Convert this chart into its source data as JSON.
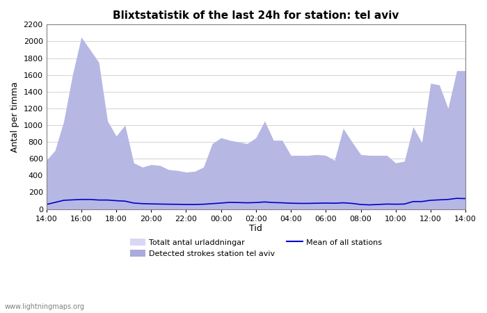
{
  "title": "Blixtstatistik of the last 24h for station: tel aviv",
  "xlabel": "Tid",
  "ylabel": "Antal per timma",
  "xlim": [
    0,
    24
  ],
  "ylim": [
    0,
    2200
  ],
  "yticks": [
    0,
    200,
    400,
    600,
    800,
    1000,
    1200,
    1400,
    1600,
    1800,
    2000,
    2200
  ],
  "xtick_labels": [
    "14:00",
    "16:00",
    "18:00",
    "20:00",
    "22:00",
    "00:00",
    "02:00",
    "04:00",
    "06:00",
    "08:00",
    "10:00",
    "12:00",
    "14:00"
  ],
  "watermark": "www.lightningmaps.org",
  "legend": {
    "label1": "Totalt antal urladdningar",
    "label2": "Detected strokes station tel aviv",
    "label3": "Mean of all stations",
    "color1": "#d0d0f0",
    "color2": "#8888cc",
    "color3": "#0000cc"
  },
  "x": [
    0,
    0.5,
    1,
    1.5,
    2,
    2.5,
    3,
    3.5,
    4,
    4.5,
    5,
    5.5,
    6,
    6.5,
    7,
    7.5,
    8,
    8.5,
    9,
    9.5,
    10,
    10.5,
    11,
    11.5,
    12,
    12.5,
    13,
    13.5,
    14,
    14.5,
    15,
    15.5,
    16,
    16.5,
    17,
    17.5,
    18,
    18.5,
    19,
    19.5,
    20,
    20.5,
    21,
    21.5,
    22,
    22.5,
    23,
    23.5,
    24
  ],
  "total_strokes": [
    580,
    700,
    1050,
    1600,
    2050,
    1900,
    1750,
    1050,
    870,
    1000,
    550,
    500,
    530,
    520,
    470,
    460,
    440,
    450,
    500,
    780,
    850,
    820,
    800,
    780,
    850,
    1050,
    820,
    820,
    640,
    640,
    640,
    650,
    640,
    580,
    960,
    800,
    650,
    640,
    640,
    640,
    550,
    570,
    980,
    790,
    1500,
    1480,
    1200,
    1650,
    1650
  ],
  "station_strokes": [
    580,
    700,
    1050,
    1600,
    2050,
    1900,
    1750,
    1050,
    870,
    1000,
    550,
    500,
    530,
    520,
    470,
    460,
    440,
    450,
    500,
    780,
    850,
    820,
    800,
    780,
    850,
    1050,
    820,
    820,
    640,
    640,
    640,
    650,
    640,
    580,
    960,
    800,
    650,
    640,
    640,
    640,
    550,
    570,
    980,
    790,
    1500,
    1480,
    1200,
    1650,
    1650
  ],
  "mean_line": [
    55,
    80,
    105,
    110,
    115,
    115,
    108,
    108,
    100,
    95,
    72,
    65,
    62,
    60,
    58,
    57,
    55,
    55,
    58,
    65,
    72,
    80,
    78,
    75,
    78,
    85,
    78,
    75,
    70,
    68,
    68,
    70,
    72,
    70,
    75,
    68,
    55,
    50,
    55,
    60,
    58,
    60,
    90,
    90,
    105,
    110,
    115,
    128,
    125
  ]
}
